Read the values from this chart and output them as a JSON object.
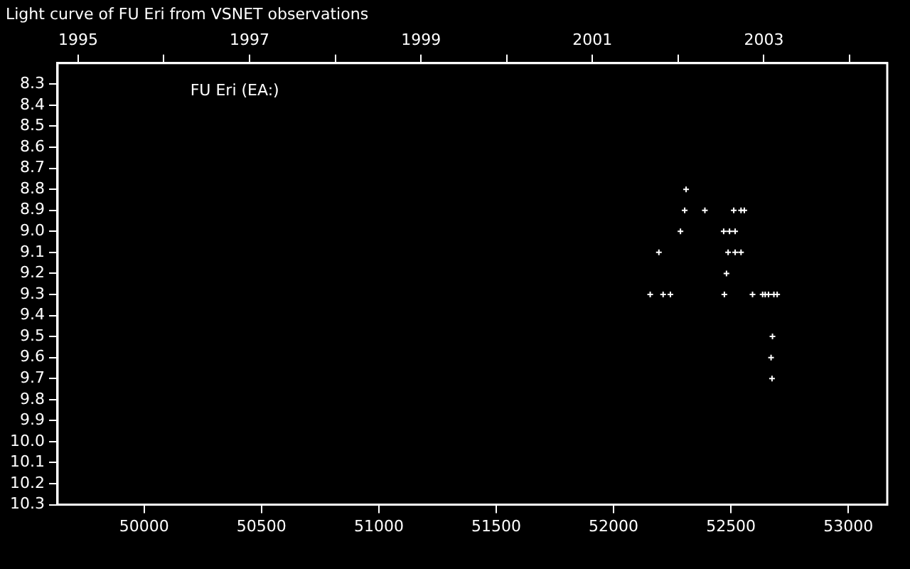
{
  "chart_data": {
    "type": "scatter",
    "title": "Light curve of FU Eri from VSNET observations",
    "annotations": [
      "FU Eri (EA:)"
    ],
    "series": [
      {
        "color": "#ffffff",
        "x": [
          52309,
          52303,
          52389,
          52512,
          52543,
          52557,
          52285,
          52469,
          52494,
          52518,
          52193,
          52488,
          52518,
          52543,
          52481,
          52156,
          52211,
          52242,
          52472,
          52592,
          52635,
          52646,
          52660,
          52683,
          52697,
          52677,
          52671,
          52675
        ],
        "values": [
          8.8,
          8.9,
          8.9,
          8.9,
          8.9,
          8.9,
          9.0,
          9.0,
          9.0,
          9.0,
          9.1,
          9.1,
          9.1,
          9.1,
          9.2,
          9.3,
          9.3,
          9.3,
          9.3,
          9.3,
          9.3,
          9.3,
          9.3,
          9.3,
          9.3,
          9.5,
          9.6,
          9.7
        ]
      }
    ],
    "xlim": [
      49631,
      53166
    ],
    "xticks": [
      50000,
      50500,
      51000,
      51500,
      52000,
      52500,
      53000
    ],
    "x2lim": [
      1994.76,
      2004.44
    ],
    "x2ticks": [
      1995,
      {
        "value": 1996,
        "label": null
      },
      1997,
      {
        "value": 1998,
        "label": null
      },
      1999,
      {
        "value": 2000,
        "label": null
      },
      2001,
      {
        "value": 2002,
        "label": null
      },
      2003,
      {
        "value": 2004,
        "label": null
      }
    ],
    "ylim": [
      10.3,
      8.2
    ],
    "yticks": [
      8.3,
      8.4,
      8.5,
      8.6,
      8.7,
      8.8,
      8.9,
      {
        "value": 9,
        "label": "9.0"
      },
      9.1,
      9.2,
      9.3,
      9.4,
      9.5,
      9.6,
      9.7,
      9.8,
      9.9,
      {
        "value": 10,
        "label": "10.0"
      },
      10.1,
      10.2,
      10.3
    ],
    "grid": false,
    "legend": false,
    "marker": "cross"
  }
}
